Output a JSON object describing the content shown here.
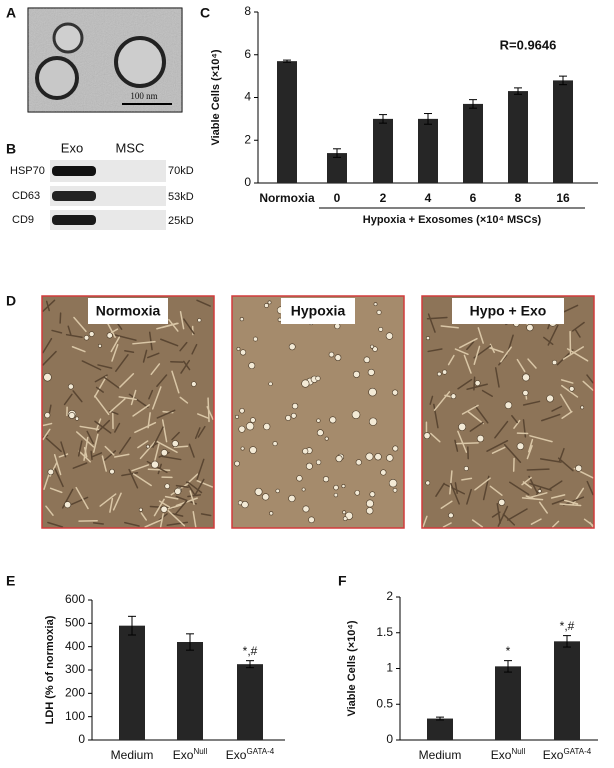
{
  "panel_a": {
    "letter": "A",
    "scale_bar": "100 nm"
  },
  "panel_b": {
    "letter": "B",
    "columns": [
      "Exo",
      "MSC"
    ],
    "rows": [
      {
        "protein": "HSP70",
        "size": "70kD"
      },
      {
        "protein": "CD63",
        "size": "53kD"
      },
      {
        "protein": "CD9",
        "size": "25kD"
      }
    ]
  },
  "panel_d": {
    "letter": "D",
    "images": [
      "Normoxia",
      "Hypoxia",
      "Hypo + Exo"
    ]
  },
  "chart_data": [
    {
      "type": "bar",
      "panel_label": "C",
      "y_label": "Viable Cells (×10⁴)",
      "x_label": "Hypoxia + Exosomes (×10⁴ MSCs)",
      "annotation": "R=0.9646",
      "categories": [
        "Normoxia",
        "0",
        "2",
        "4",
        "6",
        "8",
        "16"
      ],
      "values": [
        5.7,
        1.4,
        3.0,
        3.0,
        3.7,
        4.3,
        4.8
      ],
      "errors": [
        0.05,
        0.2,
        0.2,
        0.25,
        0.2,
        0.15,
        0.2
      ],
      "color": "#262626",
      "ylim": [
        0,
        8
      ],
      "yticks": [
        0,
        2,
        4,
        6,
        8
      ]
    },
    {
      "type": "bar",
      "panel_label": "E",
      "y_label": "LDH (% of normoxia)",
      "categories": [
        "Medium",
        "Exo",
        "Exo"
      ],
      "category_superscripts": [
        null,
        "Null",
        "GATA-4"
      ],
      "bar_annotations": [
        null,
        null,
        "*,#"
      ],
      "values": [
        490,
        420,
        325
      ],
      "errors": [
        40,
        35,
        15
      ],
      "color": "#262626",
      "ylim": [
        0,
        600
      ],
      "yticks": [
        0,
        100,
        200,
        300,
        400,
        500,
        600
      ]
    },
    {
      "type": "bar",
      "panel_label": "F",
      "y_label": "Viable Cells (×10⁴)",
      "categories": [
        "Medium",
        "Exo",
        "Exo"
      ],
      "category_superscripts": [
        null,
        "Null",
        "GATA-4"
      ],
      "bar_annotations": [
        null,
        "*",
        "*,#"
      ],
      "values": [
        0.3,
        1.03,
        1.38
      ],
      "errors": [
        0.02,
        0.08,
        0.08
      ],
      "color": "#262626",
      "ylim": [
        0,
        2
      ],
      "yticks": [
        0,
        0.5,
        1,
        1.5,
        2
      ]
    }
  ]
}
